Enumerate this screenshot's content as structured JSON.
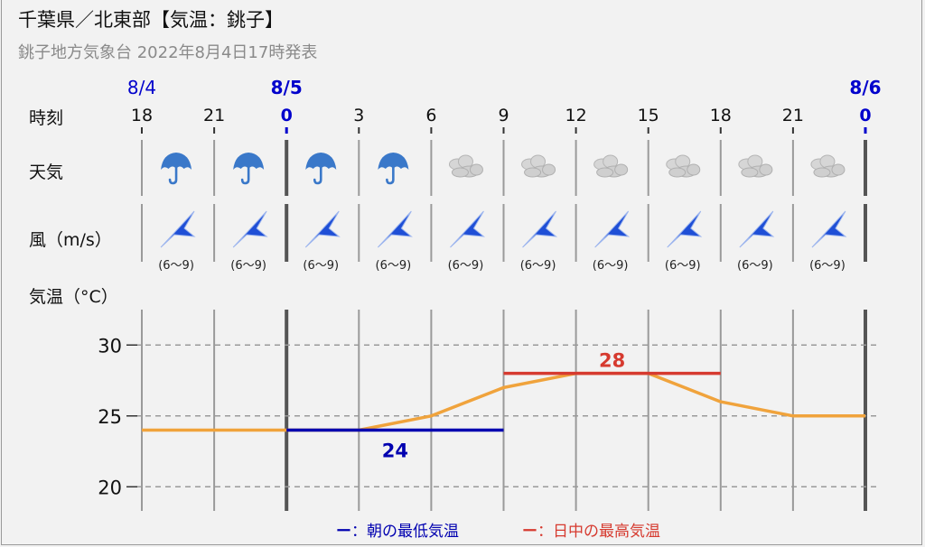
{
  "title": "千葉県／北東部【気温：銚子】",
  "subtitle": "銚子地方気象台 2022年8月4日17時発表",
  "rows": {
    "time": "時刻",
    "weather": "天気",
    "wind": "風（m/s）",
    "temp": "気温（°C）"
  },
  "dates": [
    {
      "label": "8/4",
      "at_hour_index": 0,
      "bold": false
    },
    {
      "label": "8/5",
      "at_hour_index": 2,
      "bold": true
    },
    {
      "label": "8/6",
      "at_hour_index": 10,
      "bold": true
    }
  ],
  "hours": [
    "18",
    "21",
    "0",
    "3",
    "6",
    "9",
    "12",
    "15",
    "18",
    "21",
    "0"
  ],
  "bold_hour_indices": [
    2,
    10
  ],
  "weather": [
    "umbrella-icon",
    "umbrella-icon",
    "umbrella-icon",
    "umbrella-icon",
    "cloud-icon",
    "cloud-icon",
    "cloud-icon",
    "cloud-icon",
    "cloud-icon",
    "cloud-icon"
  ],
  "wind_labels": [
    "(6〜9)",
    "(6〜9)",
    "(6〜9)",
    "(6〜9)",
    "(6〜9)",
    "(6〜9)",
    "(6〜9)",
    "(6〜9)",
    "(6〜9)",
    "(6〜9)"
  ],
  "colors": {
    "date_blue": "#0000cc",
    "min_line": "#0000b0",
    "max_line": "#d63a2f",
    "temp_line": "#f0a33c",
    "umbrella": "#3a78c9",
    "cloud": "#c4c4c4",
    "wind_arrow": "#1f4fd6",
    "grid": "#9a9a9a"
  },
  "chart_data": {
    "type": "line",
    "x": [
      "18",
      "21",
      "0",
      "3",
      "6",
      "9",
      "12",
      "15",
      "18",
      "21",
      "0"
    ],
    "series": [
      {
        "values": [
          24,
          24,
          24,
          24,
          25,
          27,
          28,
          28,
          26,
          25,
          25
        ]
      }
    ],
    "ylabel": "気温（°C）",
    "yticks": [
      20,
      25,
      30
    ],
    "ylim": [
      18.3,
      32.5
    ],
    "grid": true,
    "min_temp": {
      "value": 24,
      "label": "24",
      "from_index": 2,
      "to_index": 5
    },
    "max_temp": {
      "value": 28,
      "label": "28",
      "from_index": 5,
      "to_index": 8
    }
  },
  "legend": {
    "min_dash": "ー",
    "min_text": "：朝の最低気温",
    "max_dash": "ー",
    "max_text": "：日中の最高気温"
  }
}
